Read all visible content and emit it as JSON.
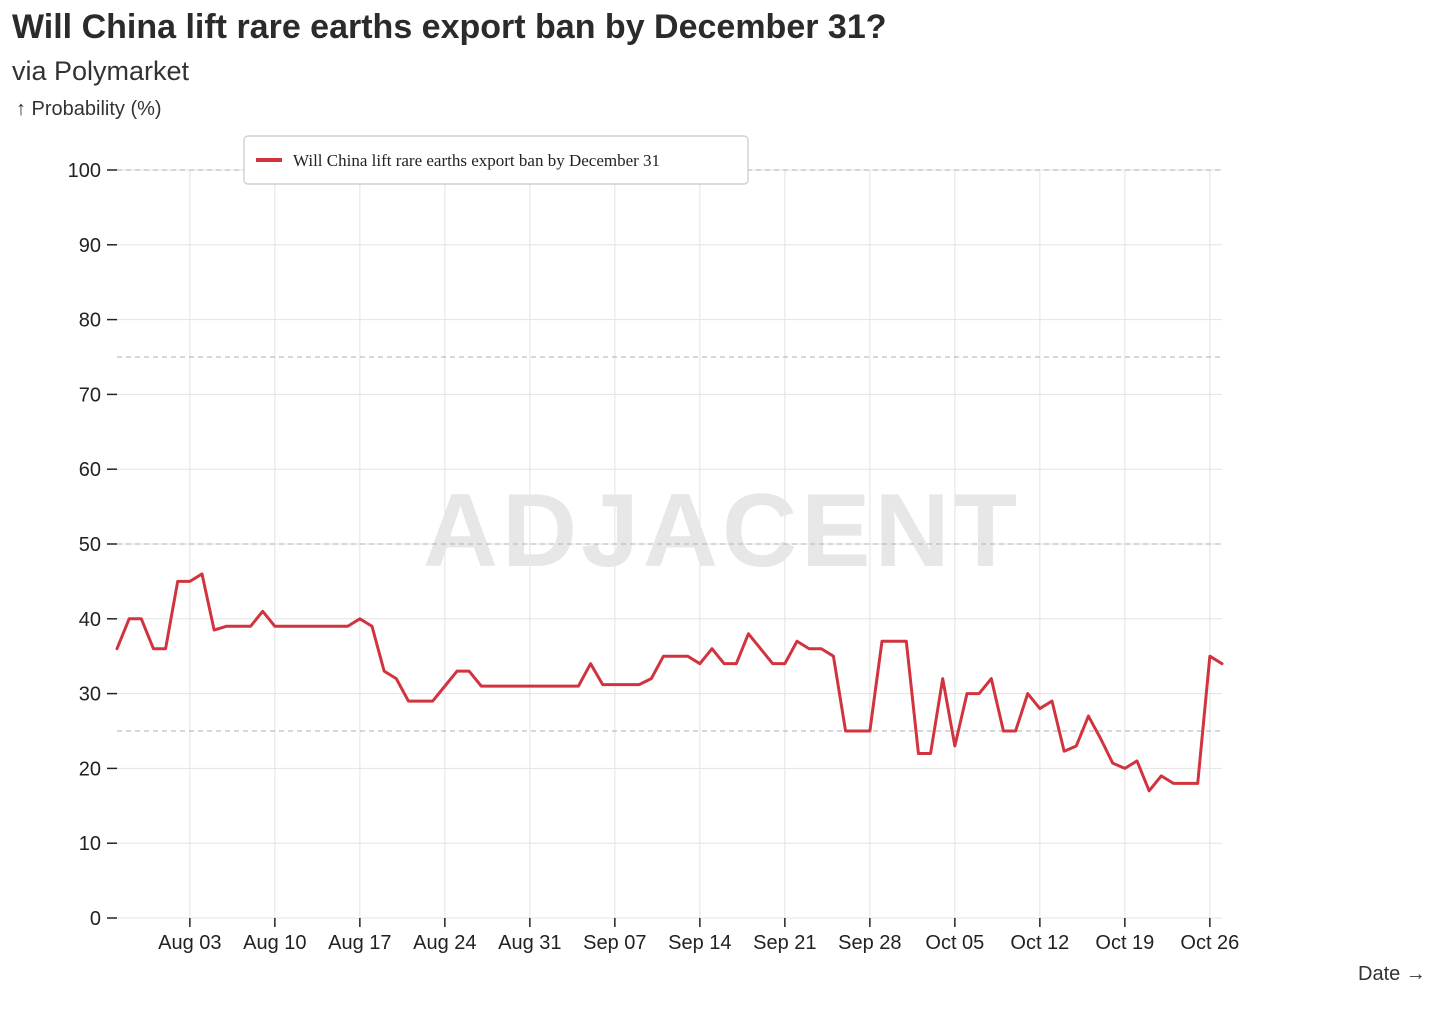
{
  "header": {
    "title": "Will China lift rare earths export ban by December 31?",
    "subtitle": "via Polymarket"
  },
  "watermark": "ADJACENT",
  "colors": {
    "series": "#d1343f",
    "grid": "#e3e3e3",
    "refline": "#bdbdbd"
  },
  "chart_data": {
    "type": "line",
    "ylabel": "↑ Probability (%)",
    "xlabel": "Date →",
    "ylim": [
      0,
      100
    ],
    "y_ticks": [
      0,
      10,
      20,
      30,
      40,
      50,
      60,
      70,
      80,
      90,
      100
    ],
    "xlim": [
      "2025-07-28",
      "2025-10-27"
    ],
    "x_ticks": [
      {
        "date": "2025-08-03",
        "label": "Aug 03"
      },
      {
        "date": "2025-08-10",
        "label": "Aug 10"
      },
      {
        "date": "2025-08-17",
        "label": "Aug 17"
      },
      {
        "date": "2025-08-24",
        "label": "Aug 24"
      },
      {
        "date": "2025-08-31",
        "label": "Aug 31"
      },
      {
        "date": "2025-09-07",
        "label": "Sep 07"
      },
      {
        "date": "2025-09-14",
        "label": "Sep 14"
      },
      {
        "date": "2025-09-21",
        "label": "Sep 21"
      },
      {
        "date": "2025-09-28",
        "label": "Sep 28"
      },
      {
        "date": "2025-10-05",
        "label": "Oct 05"
      },
      {
        "date": "2025-10-12",
        "label": "Oct 12"
      },
      {
        "date": "2025-10-19",
        "label": "Oct 19"
      },
      {
        "date": "2025-10-26",
        "label": "Oct 26"
      }
    ],
    "reference_lines": [
      25,
      50,
      75,
      100
    ],
    "grid": true,
    "legend": {
      "position": "top-left"
    },
    "series": [
      {
        "name": "Will China lift rare earths export ban by December 31",
        "color": "#d1343f",
        "points": [
          [
            "2025-07-28",
            36
          ],
          [
            "2025-07-29",
            40
          ],
          [
            "2025-07-30",
            40
          ],
          [
            "2025-07-31",
            36
          ],
          [
            "2025-08-01",
            36
          ],
          [
            "2025-08-02",
            45
          ],
          [
            "2025-08-03",
            45
          ],
          [
            "2025-08-04",
            46
          ],
          [
            "2025-08-05",
            38.5
          ],
          [
            "2025-08-06",
            39
          ],
          [
            "2025-08-07",
            39
          ],
          [
            "2025-08-08",
            39
          ],
          [
            "2025-08-09",
            41
          ],
          [
            "2025-08-10",
            39
          ],
          [
            "2025-08-11",
            39
          ],
          [
            "2025-08-12",
            39
          ],
          [
            "2025-08-13",
            39
          ],
          [
            "2025-08-14",
            39
          ],
          [
            "2025-08-15",
            39
          ],
          [
            "2025-08-16",
            39
          ],
          [
            "2025-08-17",
            40
          ],
          [
            "2025-08-18",
            39
          ],
          [
            "2025-08-19",
            33
          ],
          [
            "2025-08-20",
            32
          ],
          [
            "2025-08-21",
            29
          ],
          [
            "2025-08-22",
            29
          ],
          [
            "2025-08-23",
            29
          ],
          [
            "2025-08-24",
            31
          ],
          [
            "2025-08-25",
            33
          ],
          [
            "2025-08-26",
            33
          ],
          [
            "2025-08-27",
            31
          ],
          [
            "2025-08-28",
            31
          ],
          [
            "2025-08-29",
            31
          ],
          [
            "2025-08-30",
            31
          ],
          [
            "2025-08-31",
            31
          ],
          [
            "2025-09-01",
            31
          ],
          [
            "2025-09-02",
            31
          ],
          [
            "2025-09-03",
            31
          ],
          [
            "2025-09-04",
            31
          ],
          [
            "2025-09-05",
            34
          ],
          [
            "2025-09-06",
            31.2
          ],
          [
            "2025-09-07",
            31.2
          ],
          [
            "2025-09-08",
            31.2
          ],
          [
            "2025-09-09",
            31.2
          ],
          [
            "2025-09-10",
            32
          ],
          [
            "2025-09-11",
            35
          ],
          [
            "2025-09-12",
            35
          ],
          [
            "2025-09-13",
            35
          ],
          [
            "2025-09-14",
            34
          ],
          [
            "2025-09-15",
            36
          ],
          [
            "2025-09-16",
            34
          ],
          [
            "2025-09-17",
            34
          ],
          [
            "2025-09-18",
            38
          ],
          [
            "2025-09-19",
            36
          ],
          [
            "2025-09-20",
            34
          ],
          [
            "2025-09-21",
            34
          ],
          [
            "2025-09-22",
            37
          ],
          [
            "2025-09-23",
            36
          ],
          [
            "2025-09-24",
            36
          ],
          [
            "2025-09-25",
            35
          ],
          [
            "2025-09-26",
            25
          ],
          [
            "2025-09-27",
            25
          ],
          [
            "2025-09-28",
            25
          ],
          [
            "2025-09-29",
            37
          ],
          [
            "2025-09-30",
            37
          ],
          [
            "2025-10-01",
            37
          ],
          [
            "2025-10-02",
            22
          ],
          [
            "2025-10-03",
            22
          ],
          [
            "2025-10-04",
            32
          ],
          [
            "2025-10-05",
            23
          ],
          [
            "2025-10-06",
            30
          ],
          [
            "2025-10-07",
            30
          ],
          [
            "2025-10-08",
            32
          ],
          [
            "2025-10-09",
            25
          ],
          [
            "2025-10-10",
            25
          ],
          [
            "2025-10-11",
            30
          ],
          [
            "2025-10-12",
            28
          ],
          [
            "2025-10-13",
            29
          ],
          [
            "2025-10-14",
            22.3
          ],
          [
            "2025-10-15",
            23
          ],
          [
            "2025-10-16",
            27
          ],
          [
            "2025-10-17",
            24
          ],
          [
            "2025-10-18",
            20.7
          ],
          [
            "2025-10-19",
            20
          ],
          [
            "2025-10-20",
            21
          ],
          [
            "2025-10-21",
            17
          ],
          [
            "2025-10-22",
            19
          ],
          [
            "2025-10-23",
            18
          ],
          [
            "2025-10-24",
            18
          ],
          [
            "2025-10-25",
            18
          ],
          [
            "2025-10-26",
            35
          ],
          [
            "2025-10-27",
            34
          ]
        ]
      }
    ]
  }
}
